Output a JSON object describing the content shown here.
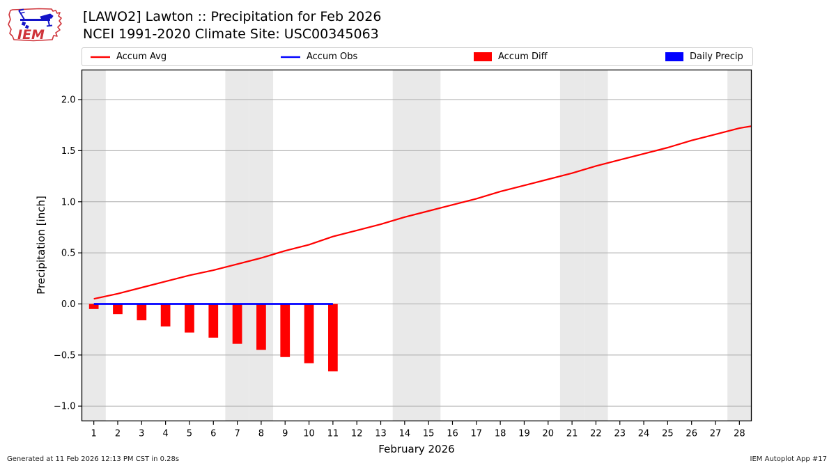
{
  "header": {
    "logo_text": "IEM",
    "title_line1": "[LAWO2] Lawton :: Precipitation for Feb 2026",
    "title_line2": "NCEI 1991-2020 Climate Site: USC00345063"
  },
  "legend": {
    "items": [
      {
        "label": "Accum Avg",
        "type": "line",
        "color": "#ff0000"
      },
      {
        "label": "Accum Obs",
        "type": "line",
        "color": "#0000ff"
      },
      {
        "label": "Accum Diff",
        "type": "patch",
        "color": "#ff0000"
      },
      {
        "label": "Daily Precip",
        "type": "patch",
        "color": "#0000ff"
      }
    ]
  },
  "chart_data": {
    "type": "bar",
    "title": "[LAWO2] Lawton :: Precipitation for Feb 2026",
    "xlabel": "February 2026",
    "ylabel": "Precipitation [inch]",
    "x": [
      1,
      2,
      3,
      4,
      5,
      6,
      7,
      8,
      9,
      10,
      11,
      12,
      13,
      14,
      15,
      16,
      17,
      18,
      19,
      20,
      21,
      22,
      23,
      24,
      25,
      26,
      27,
      28
    ],
    "xlim": [
      0.5,
      28.5
    ],
    "ylim": [
      -1.145,
      2.29
    ],
    "y_ticks": [
      -1.0,
      -0.5,
      0.0,
      0.5,
      1.0,
      1.5,
      2.0
    ],
    "grid": true,
    "legend_position": "top",
    "weekend_band_days": [
      1,
      7,
      8,
      14,
      15,
      21,
      22,
      28
    ],
    "band_color": "#e9e9e9",
    "grid_color": "#aaaaaa",
    "bar_width_days": 0.4,
    "series": [
      {
        "name": "Accum Avg",
        "type": "line",
        "color": "#ff0000",
        "lw": 2.2,
        "x": [
          1,
          2,
          3,
          4,
          5,
          6,
          7,
          8,
          9,
          10,
          11,
          12,
          13,
          14,
          15,
          16,
          17,
          18,
          19,
          20,
          21,
          22,
          23,
          24,
          25,
          26,
          27,
          28,
          28.5
        ],
        "values": [
          0.05,
          0.1,
          0.16,
          0.22,
          0.28,
          0.33,
          0.39,
          0.45,
          0.52,
          0.58,
          0.66,
          0.72,
          0.78,
          0.85,
          0.91,
          0.97,
          1.03,
          1.1,
          1.16,
          1.22,
          1.28,
          1.35,
          1.41,
          1.47,
          1.53,
          1.6,
          1.66,
          1.72,
          1.74
        ]
      },
      {
        "name": "Accum Obs",
        "type": "line",
        "color": "#0000ff",
        "lw": 2.8,
        "x": [
          1,
          2,
          3,
          4,
          5,
          6,
          7,
          8,
          9,
          10,
          11
        ],
        "values": [
          0,
          0,
          0,
          0,
          0,
          0,
          0,
          0,
          0,
          0,
          0
        ]
      },
      {
        "name": "Accum Diff",
        "type": "bar",
        "color": "#ff0000",
        "x": [
          1,
          2,
          3,
          4,
          5,
          6,
          7,
          8,
          9,
          10,
          11
        ],
        "values": [
          -0.05,
          -0.1,
          -0.16,
          -0.22,
          -0.28,
          -0.33,
          -0.39,
          -0.45,
          -0.52,
          -0.58,
          -0.66
        ]
      },
      {
        "name": "Daily Precip",
        "type": "bar",
        "color": "#0000ff",
        "x": [],
        "values": []
      }
    ]
  },
  "footer": {
    "left": "Generated at 11 Feb 2026 12:13 PM CST in 0.28s",
    "right": "IEM Autoplot App #17"
  }
}
